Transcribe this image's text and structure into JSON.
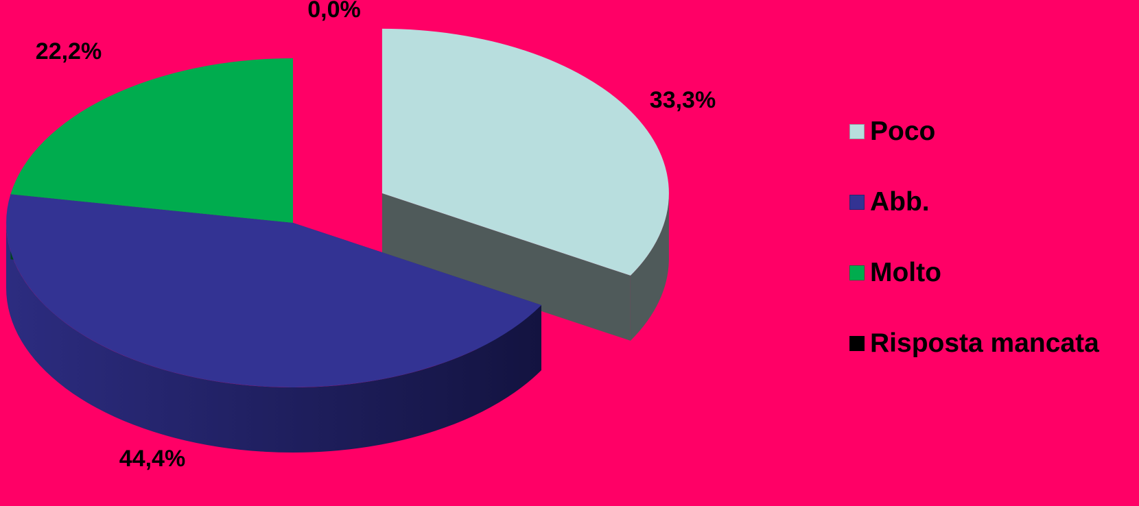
{
  "chart_data": {
    "type": "pie",
    "style": "3d-exploded",
    "categories": [
      "Poco",
      "Abb.",
      "Molto",
      "Risposta mancata"
    ],
    "values": [
      33.3,
      44.4,
      22.2,
      0.0
    ],
    "data_labels": [
      "33,3%",
      "44,4%",
      "22,2%",
      "0,0%"
    ],
    "colors": [
      "#B8DEDE",
      "#333393",
      "#00AC4E",
      "#000000"
    ],
    "side_colors": [
      "#4F5A5A",
      "#1F1F5F",
      "#00431F",
      "#000000"
    ],
    "exploded": [
      "Poco"
    ],
    "legend_position": "right",
    "background": "#FF0066"
  }
}
